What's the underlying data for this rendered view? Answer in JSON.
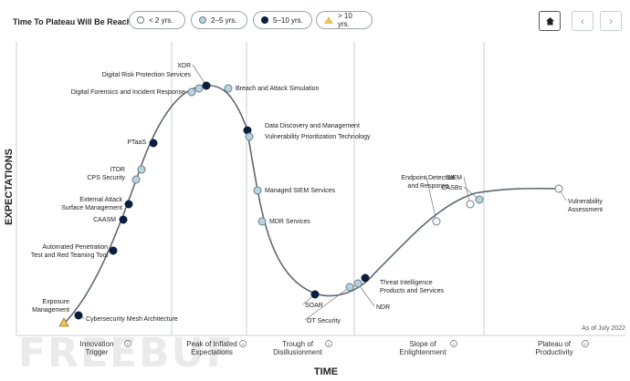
{
  "legend": {
    "title": "Time To Plateau Will Be Reached:",
    "items": [
      {
        "label": "< 2 yrs.",
        "icon": "hollow-circle-icon",
        "color": "#ffffff"
      },
      {
        "label": "2–5 yrs.",
        "icon": "light-blue-circle-icon",
        "color": "#b8d4e3"
      },
      {
        "label": "5–10 yrs.",
        "icon": "dark-navy-circle-icon",
        "color": "#0c1f3f"
      },
      {
        "label": "> 10 yrs.",
        "icon": "yellow-triangle-icon",
        "color": "#e8c558"
      }
    ]
  },
  "nav": {
    "home_icon": "home-icon",
    "prev_icon": "chevron-left-icon",
    "next_icon": "chevron-right-icon"
  },
  "watermark": "FREEBUF",
  "chart_data": {
    "type": "hype-cycle",
    "xlabel": "TIME",
    "ylabel": "EXPECTATIONS",
    "note": "As of July 2022",
    "phases": [
      {
        "label": "Innovation Trigger"
      },
      {
        "label": "Peak of Inflated Expectations"
      },
      {
        "label": "Trough of Disillusionment"
      },
      {
        "label": "Slope of Enlightenment"
      },
      {
        "label": "Plateau of Productivity"
      }
    ],
    "technologies": [
      {
        "name": "Exposure Management",
        "category": "> 10 yrs."
      },
      {
        "name": "Cybersecurity Mesh Architecture",
        "category": "5–10 yrs."
      },
      {
        "name": "Automated Penetration Test and Red Teaming Tool",
        "category": "5–10 yrs."
      },
      {
        "name": "CAASM",
        "category": "5–10 yrs."
      },
      {
        "name": "External Attack Surface Management",
        "category": "5–10 yrs."
      },
      {
        "name": "CPS Security",
        "category": "2–5 yrs."
      },
      {
        "name": "ITDR",
        "category": "2–5 yrs."
      },
      {
        "name": "PTaaS",
        "category": "5–10 yrs."
      },
      {
        "name": "Digital Forensics and Incident Response",
        "category": "2–5 yrs."
      },
      {
        "name": "Digital Risk Protection Services",
        "category": "2–5 yrs."
      },
      {
        "name": "XDR",
        "category": "5–10 yrs."
      },
      {
        "name": "Breach and Attack Simulation",
        "category": "2–5 yrs."
      },
      {
        "name": "Data Discovery and Management",
        "category": "5–10 yrs."
      },
      {
        "name": "Vulnerability Prioritization Technology",
        "category": "2–5 yrs."
      },
      {
        "name": "Managed SIEM Services",
        "category": "2–5 yrs."
      },
      {
        "name": "MDR Services",
        "category": "2–5 yrs."
      },
      {
        "name": "SOAR",
        "category": "5–10 yrs."
      },
      {
        "name": "OT Security",
        "category": "2–5 yrs."
      },
      {
        "name": "NDR",
        "category": "2–5 yrs."
      },
      {
        "name": "Threat Intelligence Products and Services",
        "category": "5–10 yrs."
      },
      {
        "name": "Endpoint Detection and Response",
        "category": "< 2 yrs."
      },
      {
        "name": "SIEM",
        "category": "< 2 yrs."
      },
      {
        "name": "CASBs",
        "category": "2–5 yrs."
      },
      {
        "name": "Vulnerability Assessment",
        "category": "< 2 yrs."
      }
    ]
  }
}
